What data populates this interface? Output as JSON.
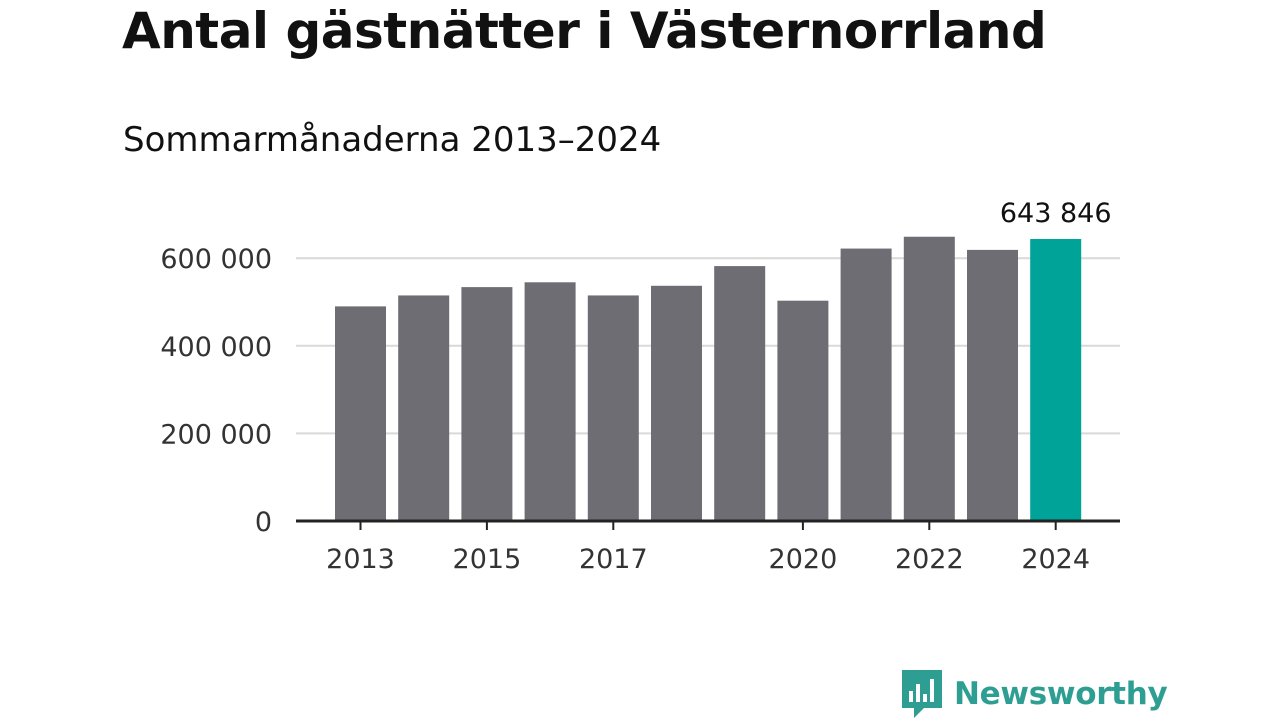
{
  "title": "Antal gästnätter i Västernorrland",
  "subtitle": "Sommarmånaderna 2013–2024",
  "colors": {
    "bar": "#6e6d73",
    "highlight": "#00a398",
    "grid": "#d9d9d9",
    "axis": "#222222",
    "brand": "#2e9e93"
  },
  "brand": {
    "name": "Newsworthy",
    "icon": "newsworthy-chart-bubble-icon"
  },
  "chart_data": {
    "type": "bar",
    "categories": [
      "2013",
      "2014",
      "2015",
      "2016",
      "2017",
      "2018",
      "2019",
      "2020",
      "2021",
      "2022",
      "2023",
      "2024"
    ],
    "values": [
      490000,
      515000,
      534000,
      545000,
      515000,
      537000,
      582000,
      503000,
      622000,
      649000,
      619000,
      643846
    ],
    "highlight_index": 11,
    "data_label": "643 846",
    "x_tick_labels": [
      "2013",
      "",
      "2015",
      "",
      "2017",
      "",
      "",
      "2020",
      "",
      "2022",
      "",
      "2024"
    ],
    "y_ticks": [
      0,
      200000,
      400000,
      600000
    ],
    "y_tick_labels": [
      "0",
      "200 000",
      "400 000",
      "600 000"
    ],
    "ylim": [
      0,
      680000
    ],
    "grid": true,
    "xlabel": "",
    "ylabel": ""
  }
}
